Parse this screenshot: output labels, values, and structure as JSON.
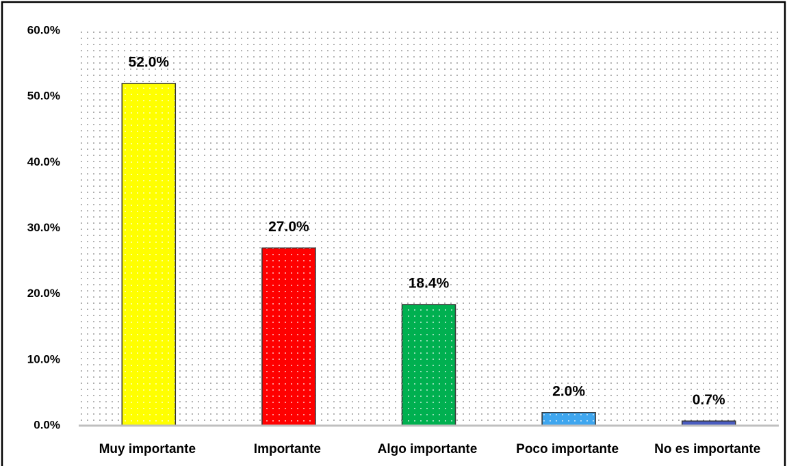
{
  "chart_data": {
    "type": "bar",
    "categories": [
      "Muy importante",
      "Importante",
      "Algo importante",
      "Poco importante",
      "No es importante"
    ],
    "values": [
      52.0,
      27.0,
      18.4,
      2.0,
      0.7
    ],
    "value_labels": [
      "52.0%",
      "27.0%",
      "18.4%",
      "2.0%",
      "0.7%"
    ],
    "colors": [
      "#ffff00",
      "#ff0000",
      "#00b050",
      "#3ea6ef",
      "#4a5cc0"
    ],
    "ylim": [
      0,
      60
    ],
    "yticks": [
      {
        "value": 0,
        "label": "0.0%"
      },
      {
        "value": 10,
        "label": "10.0%"
      },
      {
        "value": 20,
        "label": "20.0%"
      },
      {
        "value": 30,
        "label": "30.0%"
      },
      {
        "value": 40,
        "label": "40.0%"
      },
      {
        "value": 50,
        "label": "50.0%"
      },
      {
        "value": 60,
        "label": "60.0%"
      }
    ],
    "grid": false
  }
}
